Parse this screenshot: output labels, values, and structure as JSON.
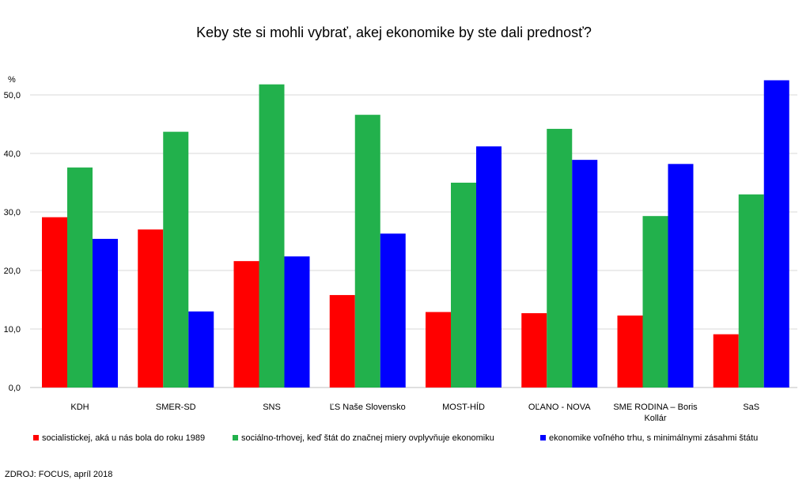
{
  "chart_data": {
    "type": "bar",
    "title": "Keby ste si mohli vybrať, akej ekonomike by ste dali prednosť?",
    "ylabel": "%",
    "ylim": [
      0,
      50
    ],
    "yticks": [
      "0,0",
      "10,0",
      "20,0",
      "30,0",
      "40,0",
      "50,0"
    ],
    "grid": true,
    "legend_position": "bottom",
    "categories": [
      [
        "KDH"
      ],
      [
        "SMER-SD"
      ],
      [
        "SNS"
      ],
      [
        "ĽS Naše Slovensko"
      ],
      [
        "MOST-HÍD"
      ],
      [
        "OĽANO - NOVA"
      ],
      [
        "SME RODINA – Boris",
        "Kollár"
      ],
      [
        "SaS"
      ]
    ],
    "series": [
      {
        "name": "socialistickej,  aká u nás bola do roku 1989",
        "color": "#ff0000",
        "values": [
          29.1,
          27.0,
          21.6,
          15.8,
          12.9,
          12.7,
          12.3,
          9.1
        ]
      },
      {
        "name": "sociálno-trhovej, keď štát do značnej miery ovplyvňuje ekonomiku",
        "color": "#22b14c",
        "values": [
          37.6,
          43.7,
          51.8,
          46.6,
          35.0,
          44.2,
          29.3,
          33.0
        ]
      },
      {
        "name": "ekonomike voľného trhu, s minimálnymi  zásahmi štátu",
        "color": "#0000ff",
        "values": [
          25.4,
          13.0,
          22.4,
          26.3,
          41.2,
          38.9,
          38.2,
          52.5
        ]
      }
    ]
  },
  "source": "ZDROJ: FOCUS, apríl 2018"
}
